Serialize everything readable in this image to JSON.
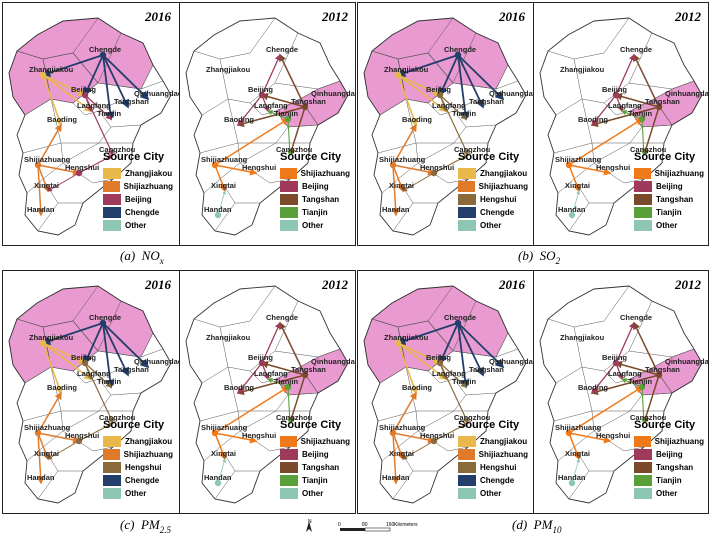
{
  "panels": [
    {
      "id": "a",
      "caption_prefix": "(a)",
      "caption_main": "NO",
      "caption_sub": "x",
      "left_year": "2016",
      "right_year": "2012",
      "legend_title": "Source City",
      "left_legend": [
        {
          "label": "Zhangjiakou",
          "color": "#e8b84a"
        },
        {
          "label": "Shijiazhuang",
          "color": "#e07a2b"
        },
        {
          "label": "Beijing",
          "color": "#a03a5a"
        },
        {
          "label": "Chengde",
          "color": "#243e6b"
        },
        {
          "label": "Other",
          "color": "#8ec6b4"
        }
      ],
      "right_legend": [
        {
          "label": "Shijiazhuang",
          "color": "#f07a1a"
        },
        {
          "label": "Beijing",
          "color": "#a03a5a"
        },
        {
          "label": "Tangshan",
          "color": "#7a4a2a"
        },
        {
          "label": "Tianjin",
          "color": "#5aa03a"
        },
        {
          "label": "Other",
          "color": "#8ec6b4"
        }
      ]
    },
    {
      "id": "b",
      "caption_prefix": "(b)",
      "caption_main": "SO",
      "caption_sub": "2",
      "left_year": "2016",
      "right_year": "2012",
      "legend_title": "Source City",
      "left_legend": [
        {
          "label": "Zhangjiakou",
          "color": "#e8b84a"
        },
        {
          "label": "Shijiazhuang",
          "color": "#e07a2b"
        },
        {
          "label": "Hengshui",
          "color": "#8a6a3a"
        },
        {
          "label": "Chengde",
          "color": "#243e6b"
        },
        {
          "label": "Other",
          "color": "#8ec6b4"
        }
      ],
      "right_legend": [
        {
          "label": "Shijiazhuang",
          "color": "#f07a1a"
        },
        {
          "label": "Beijing",
          "color": "#a03a5a"
        },
        {
          "label": "Tangshan",
          "color": "#7a4a2a"
        },
        {
          "label": "Tianjin",
          "color": "#5aa03a"
        },
        {
          "label": "Other",
          "color": "#8ec6b4"
        }
      ]
    },
    {
      "id": "c",
      "caption_prefix": "(c)",
      "caption_main": "PM",
      "caption_sub": "2.5",
      "left_year": "2016",
      "right_year": "2012",
      "legend_title": "Source City",
      "left_legend": [
        {
          "label": "Zhangjiakou",
          "color": "#e8b84a"
        },
        {
          "label": "Shijiazhuang",
          "color": "#e07a2b"
        },
        {
          "label": "Hengshui",
          "color": "#8a6a3a"
        },
        {
          "label": "Chengde",
          "color": "#243e6b"
        },
        {
          "label": "Other",
          "color": "#8ec6b4"
        }
      ],
      "right_legend": [
        {
          "label": "Shijiazhuang",
          "color": "#f07a1a"
        },
        {
          "label": "Beijing",
          "color": "#a03a5a"
        },
        {
          "label": "Tangshan",
          "color": "#7a4a2a"
        },
        {
          "label": "Tianjin",
          "color": "#5aa03a"
        },
        {
          "label": "Other",
          "color": "#8ec6b4"
        }
      ]
    },
    {
      "id": "d",
      "caption_prefix": "(d)",
      "caption_main": "PM",
      "caption_sub": "10",
      "left_year": "2016",
      "right_year": "2012",
      "legend_title": "Source City",
      "left_legend": [
        {
          "label": "Zhangjiakou",
          "color": "#e8b84a"
        },
        {
          "label": "Shijiazhuang",
          "color": "#e07a2b"
        },
        {
          "label": "Hengshui",
          "color": "#8a6a3a"
        },
        {
          "label": "Chengde",
          "color": "#243e6b"
        },
        {
          "label": "Other",
          "color": "#8ec6b4"
        }
      ],
      "right_legend": [
        {
          "label": "Shijiazhuang",
          "color": "#f07a1a"
        },
        {
          "label": "Beijing",
          "color": "#a03a5a"
        },
        {
          "label": "Tangshan",
          "color": "#7a4a2a"
        },
        {
          "label": "Tianjin",
          "color": "#5aa03a"
        },
        {
          "label": "Other",
          "color": "#8ec6b4"
        }
      ]
    }
  ],
  "city_labels": [
    "Zhangjiakou",
    "Chengde",
    "Qinhuangdao",
    "Beijing",
    "Tangshan",
    "Langfang",
    "Tianjin",
    "Baoding",
    "Cangzhou",
    "Shijiazhuang",
    "Hengshui",
    "Xingtai",
    "Handan"
  ],
  "scalebar": {
    "north": "N",
    "ticks": [
      "0",
      "80",
      "160"
    ],
    "unit": "Kilometers"
  }
}
